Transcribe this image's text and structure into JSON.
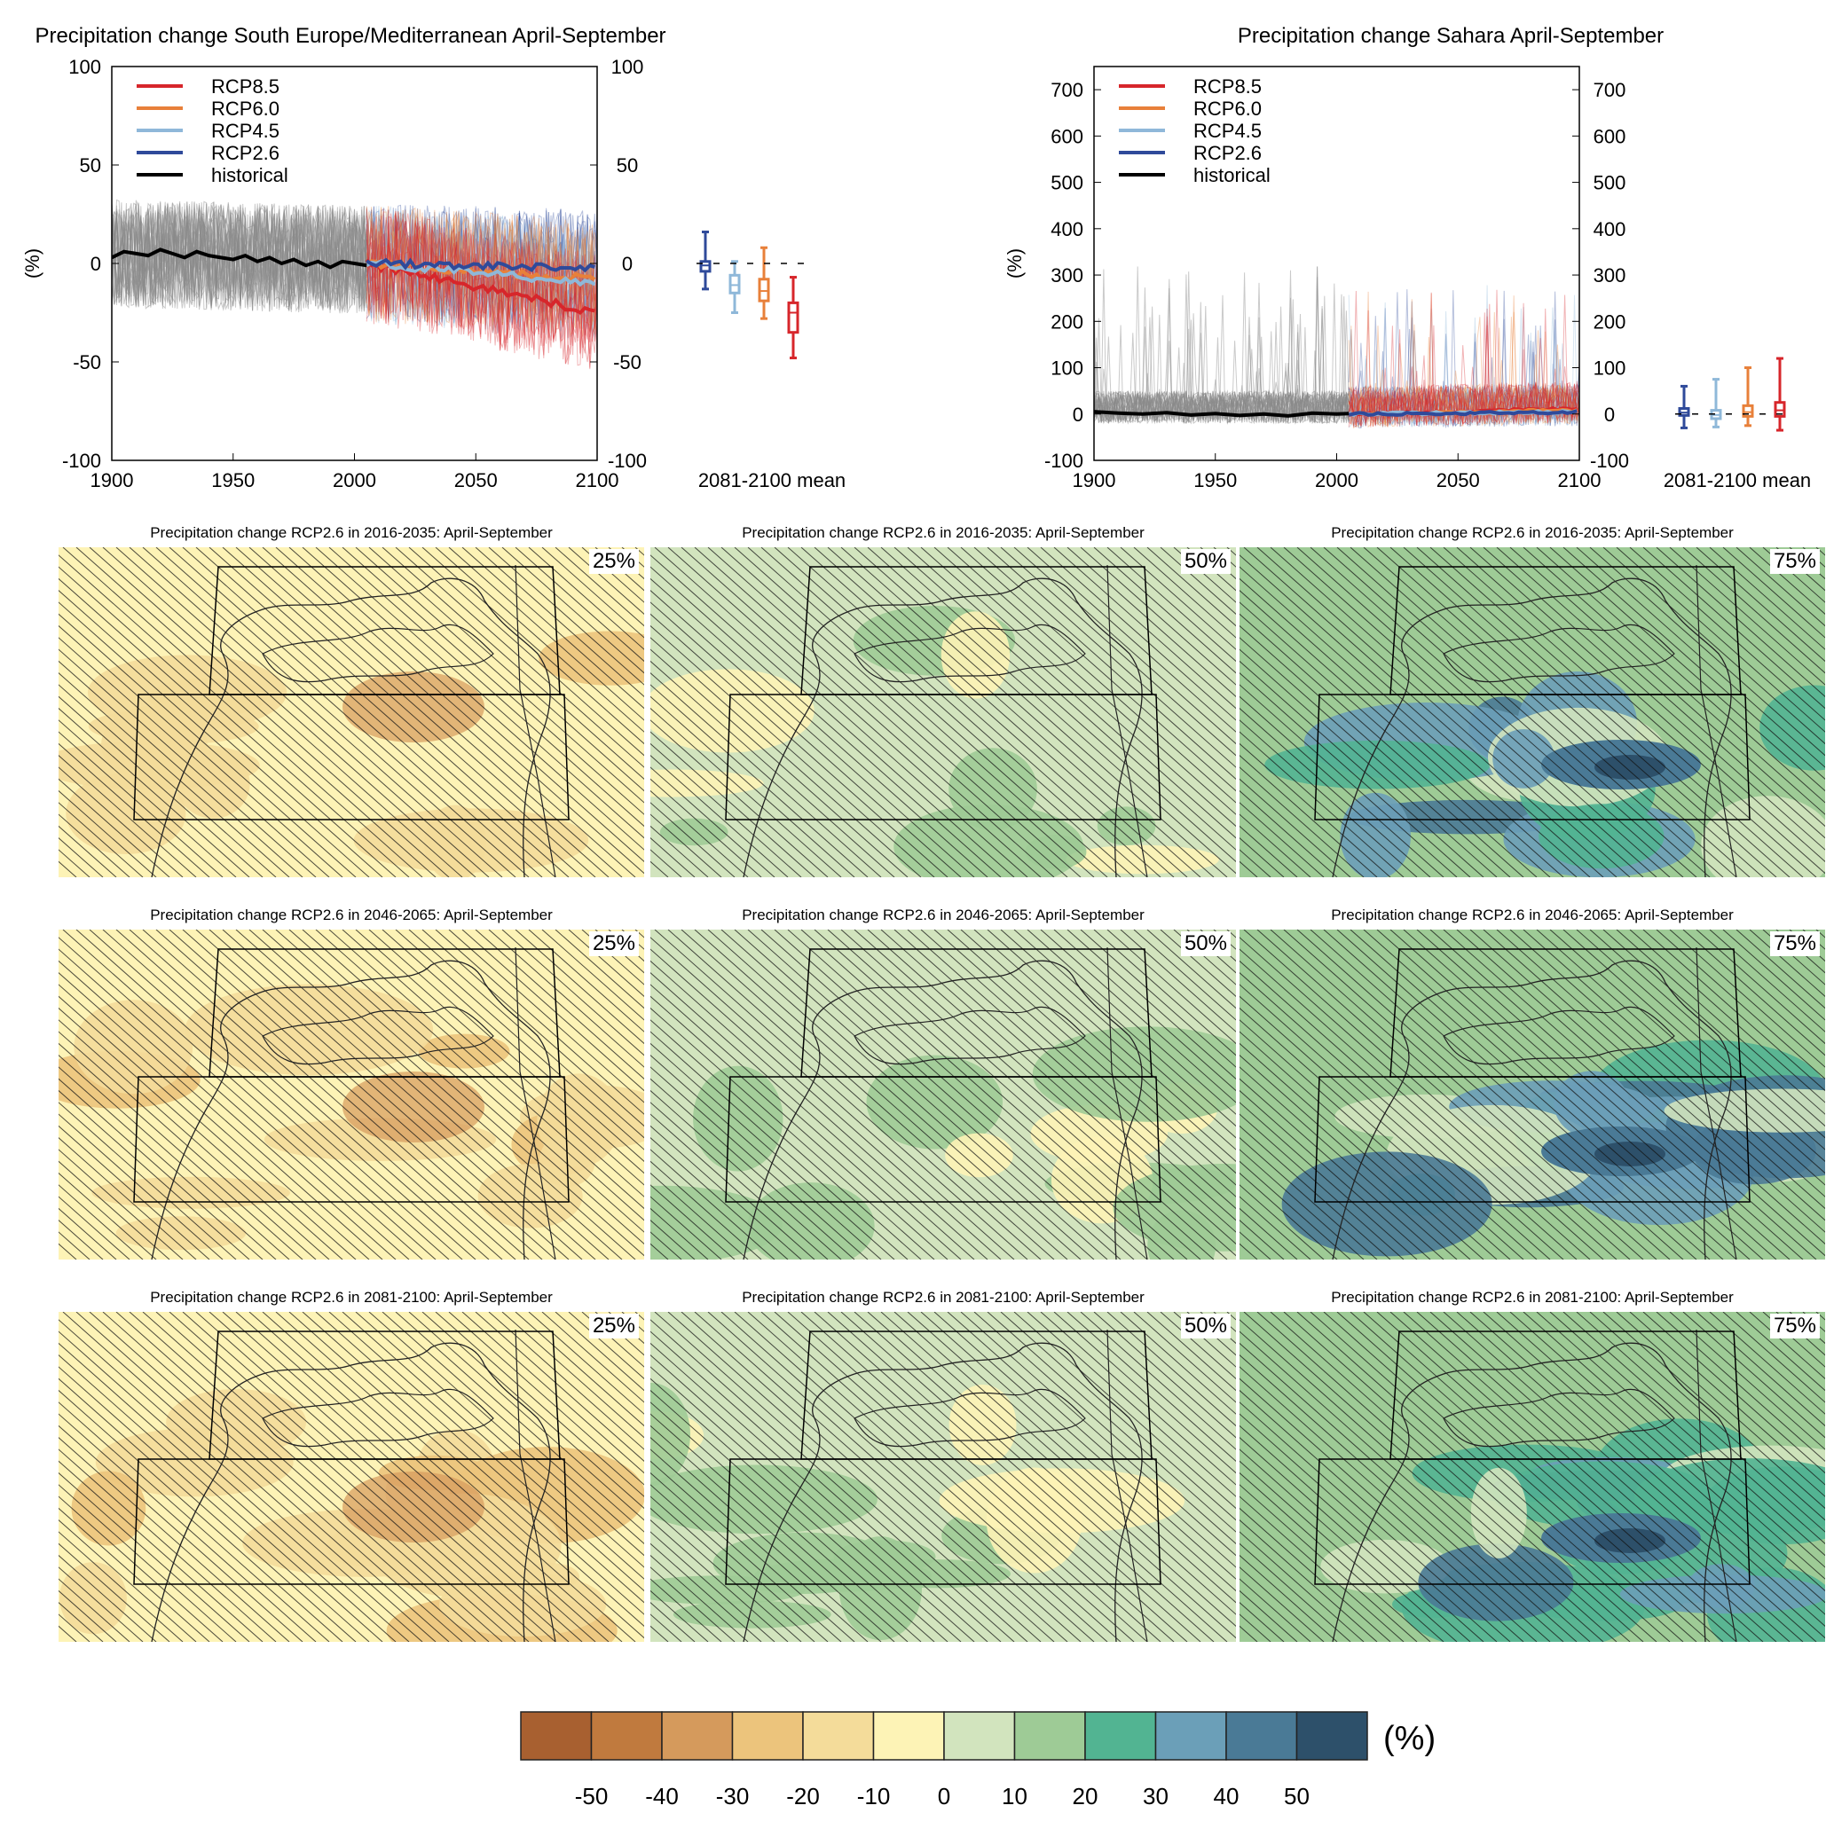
{
  "colors": {
    "rcp85": "#d7262b",
    "rcp60": "#e8803a",
    "rcp45": "#8fb8d9",
    "rcp26": "#2f4a9a",
    "historical": "#000000",
    "hist_spread": "#8a8a8a"
  },
  "chart_data": [
    {
      "type": "line",
      "title": "Precipitation change South Europe/Mediterranean April-September",
      "ylabel": "(%)",
      "xlim": [
        1900,
        2100
      ],
      "ylim": [
        -100,
        100
      ],
      "xticks": [
        1900,
        1950,
        2000,
        2050,
        2100
      ],
      "yticks": [
        -100,
        -50,
        0,
        50,
        100
      ],
      "legend_position": "top-left",
      "series": [
        {
          "name": "RCP8.5",
          "end_value": -25
        },
        {
          "name": "RCP6.0",
          "end_value": -8
        },
        {
          "name": "RCP4.5",
          "end_value": -10
        },
        {
          "name": "RCP2.6",
          "end_value": -2
        },
        {
          "name": "historical",
          "x": [
            1900,
            1905,
            1910,
            1915,
            1920,
            1925,
            1930,
            1935,
            1940,
            1945,
            1950,
            1955,
            1960,
            1965,
            1970,
            1975,
            1980,
            1985,
            1990,
            1995,
            2000,
            2005
          ],
          "values": [
            3,
            6,
            5,
            4,
            7,
            5,
            3,
            6,
            4,
            3,
            2,
            4,
            1,
            3,
            0,
            2,
            -1,
            1,
            -2,
            1,
            0,
            -1
          ]
        }
      ],
      "boxes_label": "2081-2100 mean",
      "boxes": [
        {
          "scenario": "RCP2.6",
          "min": -13,
          "q1": -4,
          "median": -1,
          "q3": 1,
          "max": 16
        },
        {
          "scenario": "RCP4.5",
          "min": -25,
          "q1": -15,
          "median": -11,
          "q3": -6,
          "max": 1
        },
        {
          "scenario": "RCP6.0",
          "min": -28,
          "q1": -19,
          "median": -14,
          "q3": -8,
          "max": 8
        },
        {
          "scenario": "RCP8.5",
          "min": -48,
          "q1": -35,
          "median": -25,
          "q3": -20,
          "max": -7
        }
      ]
    },
    {
      "type": "line",
      "title": "Precipitation change Sahara April-September",
      "ylabel": "(%)",
      "xlim": [
        1900,
        2100
      ],
      "ylim": [
        -100,
        750
      ],
      "xticks": [
        1900,
        1950,
        2000,
        2050,
        2100
      ],
      "yticks": [
        -100,
        0,
        100,
        200,
        300,
        400,
        500,
        600,
        700
      ],
      "legend_position": "top-left",
      "series": [
        {
          "name": "RCP8.5",
          "end_value": 12
        },
        {
          "name": "RCP6.0",
          "end_value": 8
        },
        {
          "name": "RCP4.5",
          "end_value": 5
        },
        {
          "name": "RCP2.6",
          "end_value": 4
        },
        {
          "name": "historical",
          "x": [
            1900,
            1910,
            1920,
            1930,
            1940,
            1950,
            1960,
            1970,
            1980,
            1990,
            2000,
            2005
          ],
          "values": [
            5,
            2,
            0,
            3,
            -2,
            1,
            -3,
            0,
            -4,
            2,
            0,
            1
          ]
        }
      ],
      "boxes_label": "2081-2100 mean",
      "boxes": [
        {
          "scenario": "RCP2.6",
          "min": -30,
          "q1": -3,
          "median": 3,
          "q3": 12,
          "max": 60
        },
        {
          "scenario": "RCP4.5",
          "min": -28,
          "q1": -10,
          "median": -2,
          "q3": 8,
          "max": 75
        },
        {
          "scenario": "RCP6.0",
          "min": -25,
          "q1": -5,
          "median": 4,
          "q3": 18,
          "max": 100
        },
        {
          "scenario": "RCP8.5",
          "min": -35,
          "q1": -5,
          "median": 8,
          "q3": 25,
          "max": 120
        }
      ]
    },
    {
      "type": "heatmap",
      "maps": [
        {
          "title": "Precipitation change RCP2.6 in 2016-2035: April-September",
          "percentile": "25%"
        },
        {
          "title": "Precipitation change RCP2.6 in 2016-2035: April-September",
          "percentile": "50%"
        },
        {
          "title": "Precipitation change RCP2.6 in 2016-2035: April-September",
          "percentile": "75%"
        },
        {
          "title": "Precipitation change RCP2.6 in 2046-2065: April-September",
          "percentile": "25%"
        },
        {
          "title": "Precipitation change RCP2.6 in 2046-2065: April-September",
          "percentile": "50%"
        },
        {
          "title": "Precipitation change RCP2.6 in 2046-2065: April-September",
          "percentile": "75%"
        },
        {
          "title": "Precipitation change RCP2.6 in 2081-2100: April-September",
          "percentile": "25%"
        },
        {
          "title": "Precipitation change RCP2.6 in 2081-2100: April-September",
          "percentile": "50%"
        },
        {
          "title": "Precipitation change RCP2.6 in 2081-2100: April-September",
          "percentile": "75%"
        }
      ],
      "colorbar": {
        "unit": "(%)",
        "ticks": [
          "-50",
          "-40",
          "-30",
          "-20",
          "-10",
          "0",
          "10",
          "20",
          "30",
          "40",
          "50"
        ],
        "colors": [
          "#a86030",
          "#c07a3e",
          "#d59a5c",
          "#ecc47c",
          "#f4dc9a",
          "#fdf3b6",
          "#d2e4be",
          "#9ecb96",
          "#52b492",
          "#6b9fb8",
          "#4a7a96",
          "#2d506a"
        ]
      }
    }
  ]
}
